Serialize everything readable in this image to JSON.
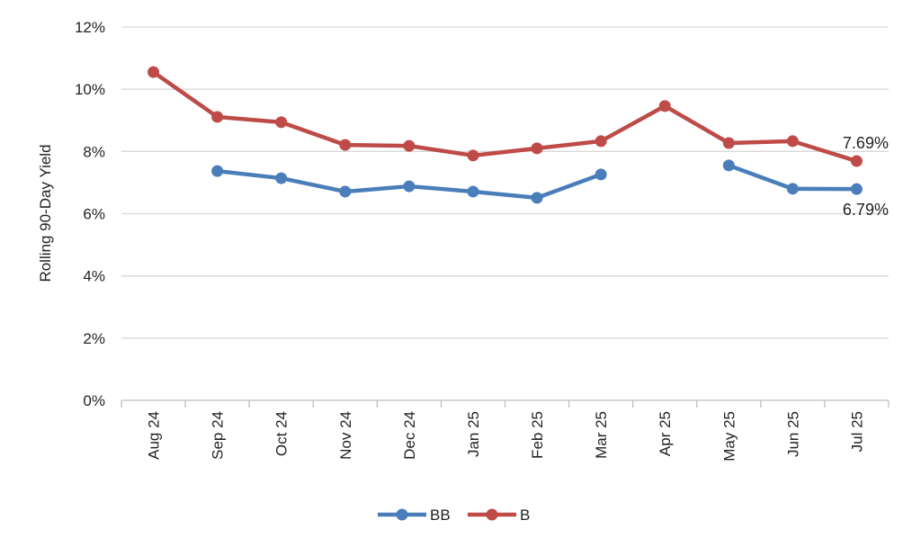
{
  "chart_data": {
    "type": "line",
    "title": "",
    "xlabel": "",
    "ylabel": "Rolling 90-Day Yield",
    "ylim": [
      0,
      12
    ],
    "yticks": [
      "0%",
      "2%",
      "4%",
      "6%",
      "8%",
      "10%",
      "12%"
    ],
    "grid": true,
    "legend_position": "bottom",
    "categories": [
      "Aug 24",
      "Sep 24",
      "Oct 24",
      "Nov 24",
      "Dec 24",
      "Jan 25",
      "Feb 25",
      "Mar 25",
      "Apr 25",
      "May 25",
      "Jun 25",
      "Jul 25"
    ],
    "series": [
      {
        "name": "BB",
        "color": "#4A7EBB",
        "values": [
          null,
          7.37,
          7.14,
          6.71,
          6.88,
          6.71,
          6.51,
          7.26,
          null,
          7.55,
          6.8,
          6.79
        ]
      },
      {
        "name": "B",
        "color": "#BE4B48",
        "values": [
          10.55,
          9.11,
          8.94,
          8.21,
          8.18,
          7.87,
          8.1,
          8.33,
          9.46,
          8.27,
          8.33,
          7.69
        ]
      }
    ],
    "annotations": [
      {
        "series": "B",
        "category": "Jul 25",
        "text": "7.69%"
      },
      {
        "series": "BB",
        "category": "Jul 25",
        "text": "6.79%"
      }
    ]
  }
}
